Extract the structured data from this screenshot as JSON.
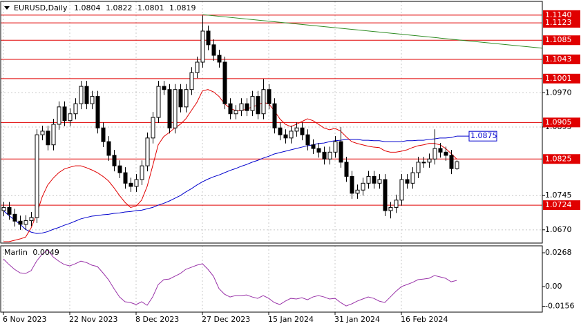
{
  "chart_data": {
    "type": "candlestick",
    "symbol": "EURUSD,Daily",
    "categories": [
      "6 Nov 2023",
      null,
      null,
      null,
      null,
      null,
      null,
      null,
      null,
      null,
      null,
      null,
      "22 Nov 2023",
      null,
      null,
      null,
      null,
      null,
      null,
      null,
      null,
      null,
      null,
      null,
      "8 Dec 2023",
      null,
      null,
      null,
      null,
      null,
      null,
      null,
      null,
      null,
      null,
      null,
      "27 Dec 2023",
      null,
      null,
      null,
      null,
      null,
      null,
      null,
      null,
      null,
      null,
      null,
      "15 Jan 2024",
      null,
      null,
      null,
      null,
      null,
      null,
      null,
      null,
      null,
      null,
      null,
      "31 Jan 2024",
      null,
      null,
      null,
      null,
      null,
      null,
      null,
      null,
      null,
      null,
      null,
      "16 Feb 2024",
      null,
      null,
      null,
      null,
      null,
      null,
      null,
      null,
      null,
      null
    ],
    "open": [
      1.0712,
      1.0719,
      1.0704,
      1.0689,
      1.0682,
      1.069,
      1.0697,
      1.0878,
      1.0886,
      1.0856,
      1.0901,
      1.0939,
      1.0909,
      1.0924,
      1.0946,
      1.0984,
      1.0946,
      1.0962,
      1.0893,
      1.0863,
      1.0833,
      1.081,
      1.0795,
      1.0772,
      1.0765,
      1.078,
      1.081,
      1.0871,
      1.0916,
      1.0984,
      1.0977,
      1.0893,
      1.0977,
      1.0939,
      1.0977,
      1.1014,
      1.1037,
      1.1105,
      1.1075,
      1.1052,
      1.1037,
      1.0946,
      1.0924,
      1.0931,
      1.0946,
      1.0931,
      1.0962,
      1.0924,
      1.0977,
      1.0946,
      1.0893,
      1.0878,
      1.0871,
      1.0886,
      1.0893,
      1.0878,
      1.0856,
      1.0848,
      1.084,
      1.0825,
      1.084,
      1.0863,
      1.0818,
      1.0787,
      1.075,
      1.0757,
      1.0772,
      1.0787,
      1.0772,
      1.078,
      1.0712,
      1.0719,
      1.0735,
      1.078,
      1.0772,
      1.0795,
      1.0818,
      1.0818,
      1.0825,
      1.0848,
      1.084,
      1.0833,
      1.0804
    ],
    "high": [
      1.0731,
      1.0731,
      1.0716,
      1.0701,
      1.0702,
      1.0709,
      1.089,
      1.0898,
      1.0898,
      1.0913,
      1.0951,
      1.0951,
      1.0936,
      1.0958,
      1.0996,
      1.0996,
      1.0974,
      1.0974,
      1.0905,
      1.0875,
      1.0845,
      1.0822,
      1.0807,
      1.0784,
      1.0792,
      1.0822,
      1.0883,
      1.0928,
      1.0996,
      1.0996,
      1.0989,
      1.0989,
      1.0989,
      1.0989,
      1.1026,
      1.1049,
      1.1139,
      1.1117,
      1.1087,
      1.1064,
      1.1049,
      1.0958,
      1.0943,
      1.0958,
      1.0958,
      1.0974,
      1.0974,
      1.1,
      1.0989,
      1.0958,
      1.0905,
      1.089,
      1.0898,
      1.0905,
      1.0905,
      1.089,
      1.0868,
      1.086,
      1.0852,
      1.0852,
      1.0875,
      1.0895,
      1.083,
      1.0799,
      1.0769,
      1.0784,
      1.0799,
      1.0799,
      1.0792,
      1.0792,
      1.0731,
      1.0747,
      1.0792,
      1.0792,
      1.0807,
      1.083,
      1.083,
      1.0837,
      1.089,
      1.086,
      1.0852,
      1.0845,
      1.0822
    ],
    "low": [
      1.07,
      1.0692,
      1.0677,
      1.067,
      1.067,
      1.0678,
      1.0685,
      1.0866,
      1.0844,
      1.0844,
      1.0889,
      1.0897,
      1.0897,
      1.0912,
      1.0934,
      1.0934,
      1.0934,
      1.0881,
      1.0851,
      1.0821,
      1.0798,
      1.0783,
      1.076,
      1.0753,
      1.0753,
      1.0768,
      1.0798,
      1.0859,
      1.0904,
      1.0965,
      1.0881,
      1.0881,
      1.0927,
      1.0927,
      1.0965,
      1.1002,
      1.1025,
      1.1063,
      1.104,
      1.1025,
      1.0934,
      1.0912,
      1.0912,
      1.0919,
      1.0919,
      1.0919,
      1.0912,
      1.0912,
      1.0934,
      1.0881,
      1.0866,
      1.0859,
      1.0859,
      1.0874,
      1.0866,
      1.0844,
      1.0836,
      1.0828,
      1.0813,
      1.0813,
      1.0828,
      1.0806,
      1.0775,
      1.0738,
      1.0738,
      1.0745,
      1.076,
      1.076,
      1.076,
      1.07,
      1.0695,
      1.0707,
      1.0723,
      1.076,
      1.076,
      1.0783,
      1.0806,
      1.0806,
      1.0813,
      1.0828,
      1.0821,
      1.0792,
      1.0801
    ],
    "close": [
      1.0719,
      1.0704,
      1.0689,
      1.0682,
      1.069,
      1.0697,
      1.0878,
      1.0886,
      1.0856,
      1.0901,
      1.0939,
      1.0909,
      1.0924,
      1.0946,
      1.0984,
      1.0946,
      1.0962,
      1.0893,
      1.0863,
      1.0833,
      1.081,
      1.0795,
      1.0772,
      1.0765,
      1.078,
      1.081,
      1.0871,
      1.0916,
      1.0984,
      1.0977,
      1.0893,
      1.0977,
      1.0939,
      1.0977,
      1.1014,
      1.1037,
      1.1105,
      1.1075,
      1.1052,
      1.1037,
      1.0946,
      1.0924,
      1.0931,
      1.0946,
      1.0931,
      1.0962,
      1.0924,
      1.0977,
      1.0946,
      1.0893,
      1.0878,
      1.0871,
      1.0886,
      1.0893,
      1.0878,
      1.0856,
      1.0848,
      1.084,
      1.0825,
      1.084,
      1.0863,
      1.0818,
      1.0787,
      1.075,
      1.0757,
      1.0772,
      1.0787,
      1.0772,
      1.078,
      1.0712,
      1.0719,
      1.0735,
      1.078,
      1.0772,
      1.0795,
      1.0818,
      1.0818,
      1.0825,
      1.0848,
      1.084,
      1.0833,
      1.0804,
      1.0819
    ],
    "up_color": "#ffffff",
    "down_color": "#000000",
    "ylim": [
      1.0641,
      1.117
    ],
    "yticks": [
      {
        "value": 1.097,
        "label": "1.0970"
      },
      1.0895,
      1.0745,
      {
        "value": 1.067,
        "label": "1.0670"
      }
    ],
    "grid": true,
    "ma_fast": {
      "color": "#e00000",
      "values": [
        1.0644,
        1.0644,
        1.0647,
        1.065,
        1.0654,
        1.0674,
        1.0704,
        1.0742,
        1.0768,
        1.0783,
        1.0795,
        1.0803,
        1.0807,
        1.081,
        1.081,
        1.0806,
        1.0801,
        1.0795,
        1.0787,
        1.0777,
        1.0762,
        1.0745,
        1.073,
        1.0719,
        1.0722,
        1.0735,
        1.0765,
        1.081,
        1.0856,
        1.0874,
        1.0883,
        1.0893,
        1.0901,
        1.0913,
        1.0931,
        1.0949,
        1.0974,
        1.0977,
        1.0972,
        1.0962,
        1.0946,
        1.0936,
        1.0931,
        1.0931,
        1.0934,
        1.0939,
        1.0943,
        1.0949,
        1.0946,
        1.0931,
        1.0913,
        1.0901,
        1.0896,
        1.0901,
        1.0907,
        1.0913,
        1.0909,
        1.0901,
        1.0893,
        1.0889,
        1.0892,
        1.0886,
        1.0874,
        1.0863,
        1.0859,
        1.0856,
        1.0853,
        1.0851,
        1.085,
        1.0843,
        1.084,
        1.084,
        1.0842,
        1.0845,
        1.085,
        1.0854,
        1.0856,
        1.0859,
        1.0859,
        1.0856,
        1.0848,
        1.0837,
        1.0825
      ]
    },
    "ma_slow": {
      "color": "#0000cd",
      "values": [
        1.0712,
        1.0701,
        1.0692,
        1.0682,
        1.0671,
        1.0665,
        1.0662,
        1.0663,
        1.0666,
        1.0671,
        1.0675,
        1.068,
        1.0684,
        1.0689,
        1.0694,
        1.0697,
        1.07,
        1.0701,
        1.0703,
        1.0704,
        1.0706,
        1.0707,
        1.0709,
        1.071,
        1.0712,
        1.0713,
        1.0716,
        1.0719,
        1.0724,
        1.0728,
        1.0733,
        1.0739,
        1.0745,
        1.0753,
        1.076,
        1.0768,
        1.0775,
        1.0781,
        1.0786,
        1.079,
        1.0795,
        1.08,
        1.0804,
        1.0809,
        1.0813,
        1.0818,
        1.0822,
        1.0827,
        1.0831,
        1.0836,
        1.0839,
        1.0842,
        1.0845,
        1.0848,
        1.0851,
        1.0854,
        1.0856,
        1.0859,
        1.086,
        1.0863,
        1.0865,
        1.0866,
        1.0868,
        1.0868,
        1.0868,
        1.0866,
        1.0866,
        1.0865,
        1.0865,
        1.0863,
        1.0863,
        1.0863,
        1.0863,
        1.0865,
        1.0865,
        1.0866,
        1.0866,
        1.0868,
        1.0869,
        1.0871,
        1.0871,
        1.0872,
        1.0875
      ]
    },
    "trendline": {
      "color": "#2e8b22",
      "x": [
        36,
        98
      ],
      "y": [
        1.1141,
        1.1067
      ]
    },
    "levels": {
      "color": "#e00000",
      "values": [
        {
          "value": 1.114,
          "label": "1.1140"
        },
        1.1123,
        1.1085,
        1.1043,
        1.1001,
        1.0905,
        1.0825,
        1.0724
      ]
    },
    "indicator": {
      "name": "Marlin",
      "color": "#9932a8",
      "values": [
        0.0219,
        0.0175,
        0.0137,
        0.0109,
        0.0104,
        0.0126,
        0.0202,
        0.0257,
        0.029,
        0.0235,
        0.0202,
        0.0175,
        0.0164,
        0.0181,
        0.0202,
        0.0191,
        0.017,
        0.0159,
        0.0109,
        0.0055,
        -0.0016,
        -0.0082,
        -0.012,
        -0.0126,
        -0.0142,
        -0.012,
        -0.0148,
        -0.0082,
        0.0016,
        0.0055,
        0.006,
        0.0082,
        0.0104,
        0.0137,
        0.0153,
        0.017,
        0.0181,
        0.0137,
        0.0082,
        -0.0016,
        -0.006,
        -0.0082,
        -0.0071,
        -0.0071,
        -0.0066,
        -0.0082,
        -0.0093,
        -0.0071,
        -0.0093,
        -0.0126,
        -0.0142,
        -0.0115,
        -0.0093,
        -0.0098,
        -0.0088,
        -0.0104,
        -0.0082,
        -0.0071,
        -0.0082,
        -0.0098,
        -0.0093,
        -0.0126,
        -0.0153,
        -0.0137,
        -0.0115,
        -0.0098,
        -0.0082,
        -0.0093,
        -0.0115,
        -0.0126,
        -0.0082,
        -0.0038,
        0.0,
        0.0016,
        0.0033,
        0.0055,
        0.006,
        0.0066,
        0.0088,
        0.0077,
        0.0066,
        0.0038,
        0.0049
      ],
      "ylim": [
        -0.0202,
        0.0323
      ],
      "yticks": [
        0.0268,
        {
          "value": 0,
          "label": "0.00"
        },
        -0.0156
      ]
    }
  }
}
